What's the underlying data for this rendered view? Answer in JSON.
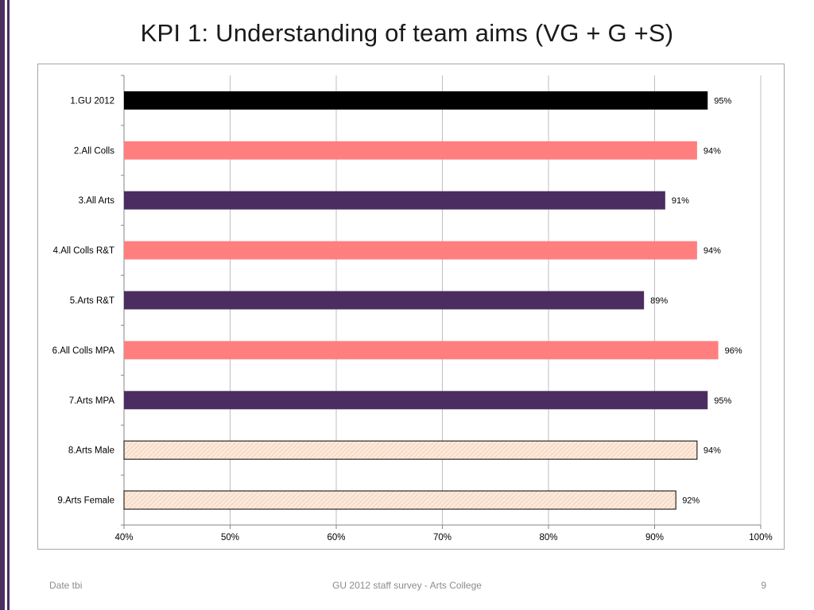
{
  "slide": {
    "title": "KPI 1: Understanding of team aims (VG + G +S)",
    "footer_left": "Date tbi",
    "footer_center": "GU 2012 staff survey -  Arts College",
    "page_number": "9"
  },
  "colors": {
    "accent_stripe": "#4b2d62",
    "black_bar": "#000000",
    "salmon_bar": "#ff7f7f",
    "purple_bar": "#4b2d62",
    "hatched_fill": "#fde9d9",
    "grid": "#bfbfbf"
  },
  "chart_data": {
    "type": "bar",
    "orientation": "horizontal",
    "categories": [
      "1.GU 2012",
      "2.All Colls",
      "3.All Arts",
      "4.All Colls R&T",
      "5.Arts R&T",
      "6.All Colls MPA",
      "7.Arts MPA",
      "8.Arts Male",
      "9.Arts Female"
    ],
    "values": [
      95,
      94,
      91,
      94,
      89,
      96,
      95,
      94,
      92
    ],
    "data_labels": [
      "95%",
      "94%",
      "91%",
      "94%",
      "89%",
      "96%",
      "95%",
      "94%",
      "92%"
    ],
    "bar_styles": [
      "black",
      "salmon",
      "purple",
      "salmon",
      "purple",
      "salmon",
      "purple",
      "hatched",
      "hatched"
    ],
    "xlim": [
      40,
      100
    ],
    "xticks": [
      40,
      50,
      60,
      70,
      80,
      90,
      100
    ],
    "xtick_labels": [
      "40%",
      "50%",
      "60%",
      "70%",
      "80%",
      "90%",
      "100%"
    ],
    "grid": true,
    "title": "",
    "xlabel": "",
    "ylabel": ""
  }
}
